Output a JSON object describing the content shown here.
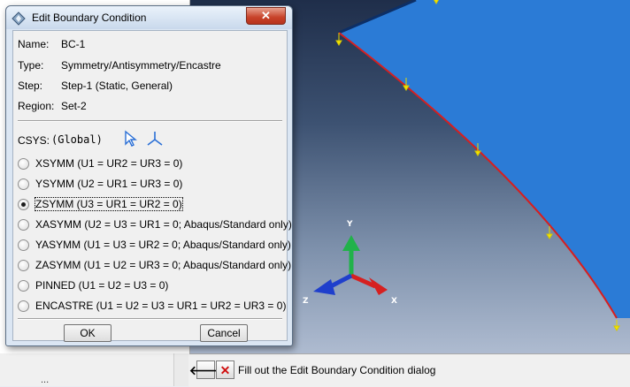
{
  "dialog": {
    "title": "Edit Boundary Condition",
    "close_symbol": "✕",
    "fields": [
      {
        "label": "Name:",
        "value": "BC-1"
      },
      {
        "label": "Type:",
        "value": "Symmetry/Antisymmetry/Encastre"
      },
      {
        "label": "Step:",
        "value": "Step-1 (Static, General)"
      },
      {
        "label": "Region:",
        "value": "Set-2"
      }
    ],
    "csys": {
      "label": "CSYS:",
      "value": "(Global)",
      "select_icon": "arrow-cursor-icon",
      "create_icon": "triad-icon"
    },
    "options": [
      {
        "label": "XSYMM (U1 = UR2 = UR3 = 0)",
        "checked": false
      },
      {
        "label": "YSYMM (U2 = UR1 = UR3 = 0)",
        "checked": false
      },
      {
        "label": "ZSYMM (U3 = UR1 = UR2 = 0)",
        "checked": true
      },
      {
        "label": "XASYMM (U2 = U3 = UR1 = 0; Abaqus/Standard only)",
        "checked": false
      },
      {
        "label": "YASYMM (U1 = U3 = UR2 = 0; Abaqus/Standard only)",
        "checked": false
      },
      {
        "label": "ZASYMM (U1 = U2 = UR3 = 0; Abaqus/Standard only)",
        "checked": false
      },
      {
        "label": "PINNED (U1 = U2 = U3 = 0)",
        "checked": false
      },
      {
        "label": "ENCASTRE (U1 = U2 = U3 = UR1 = UR2 = UR3 = 0)",
        "checked": false
      }
    ],
    "ok_label": "OK",
    "cancel_label": "Cancel"
  },
  "prompt": {
    "text": "Fill out the Edit Boundary Condition dialog",
    "back_symbol": "🡐",
    "cancel_symbol": "✕"
  },
  "viewport": {
    "triad_labels": {
      "y": "Y",
      "x": "X",
      "z": "Z"
    },
    "colors": {
      "part": "#2b7bd6",
      "edge": "#d81e1e",
      "bc_marker": "#f2e600",
      "y_axis": "#21b24a",
      "x_axis": "#d62020",
      "z_axis": "#1f3fcc"
    }
  },
  "left_panel": {
    "peek_text": "..."
  }
}
